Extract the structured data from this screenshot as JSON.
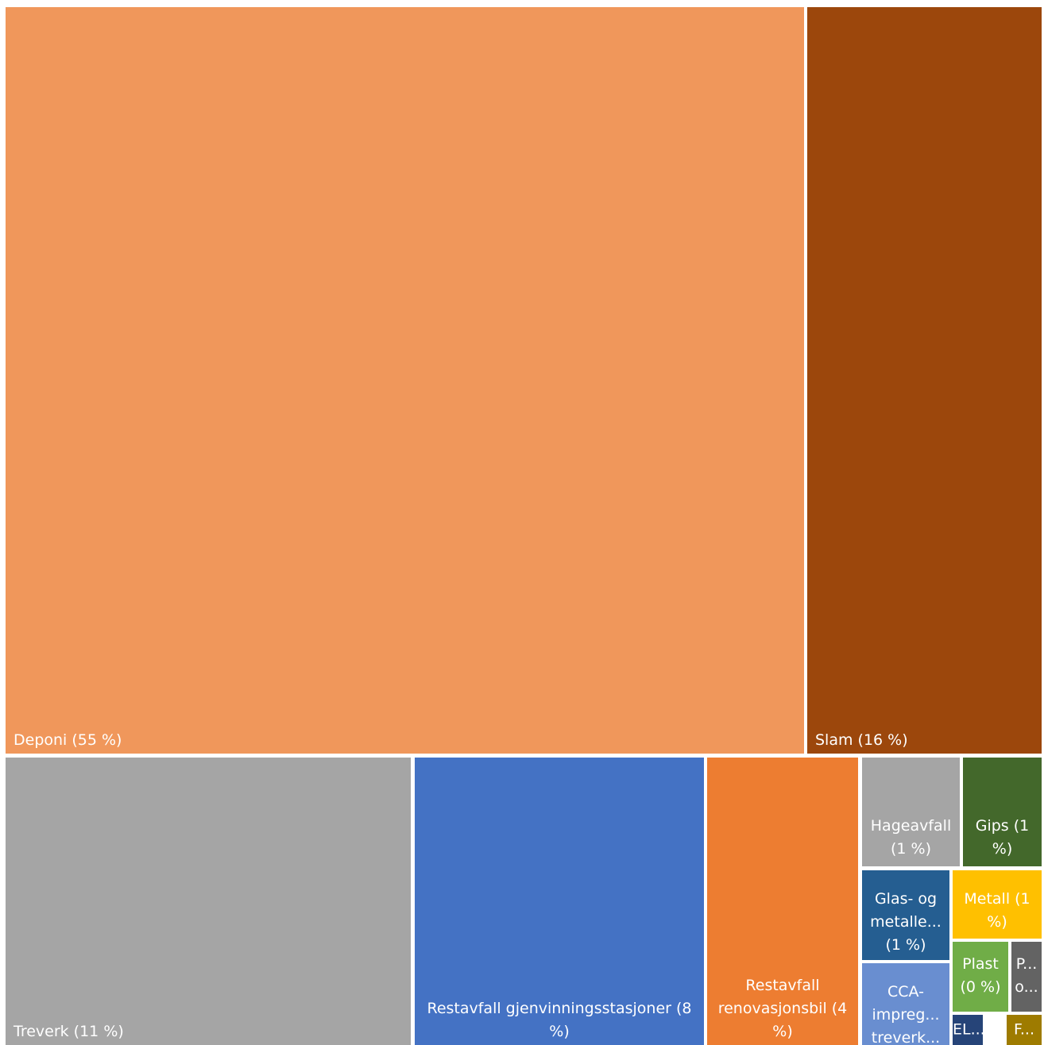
{
  "chart_data": {
    "type": "treemap",
    "title": "",
    "items": [
      {
        "label": "Deponi (55 %)",
        "value": 55,
        "color": "#F0975B"
      },
      {
        "label": "Slam (16 %)",
        "value": 16,
        "color": "#9C470C"
      },
      {
        "label": "Treverk (11 %)",
        "value": 11,
        "color": "#A5A5A5"
      },
      {
        "label": "Restavfall gjenvinningsstasjoner (8\n%)",
        "value": 8,
        "color": "#4472C4"
      },
      {
        "label": "Restavfall\nrenovasjonsbil (4\n%)",
        "value": 4,
        "color": "#ED7D31"
      },
      {
        "label": "Hageavfall\n(1 %)",
        "value": 1,
        "color": "#A5A5A5"
      },
      {
        "label": "Gips (1\n%)",
        "value": 1,
        "color": "#43682B"
      },
      {
        "label": "Glas- og\nmetalle...\n(1 %)",
        "value": 1,
        "color": "#255E91"
      },
      {
        "label": "Metall (1\n%)",
        "value": 1,
        "color": "#FFC000"
      },
      {
        "label": "CCA-\nimpreg...\ntreverk...",
        "value": 0.5,
        "color": "#698ED0"
      },
      {
        "label": "Plast\n(0 %)",
        "value": 0.3,
        "color": "#70AD47"
      },
      {
        "label": "P...\no...",
        "value": 0.2,
        "color": "#636363"
      },
      {
        "label": "EL...",
        "value": 0.15,
        "color": "#264478"
      },
      {
        "label": "F...",
        "value": 0.1,
        "color": "#9E7B00"
      }
    ]
  }
}
